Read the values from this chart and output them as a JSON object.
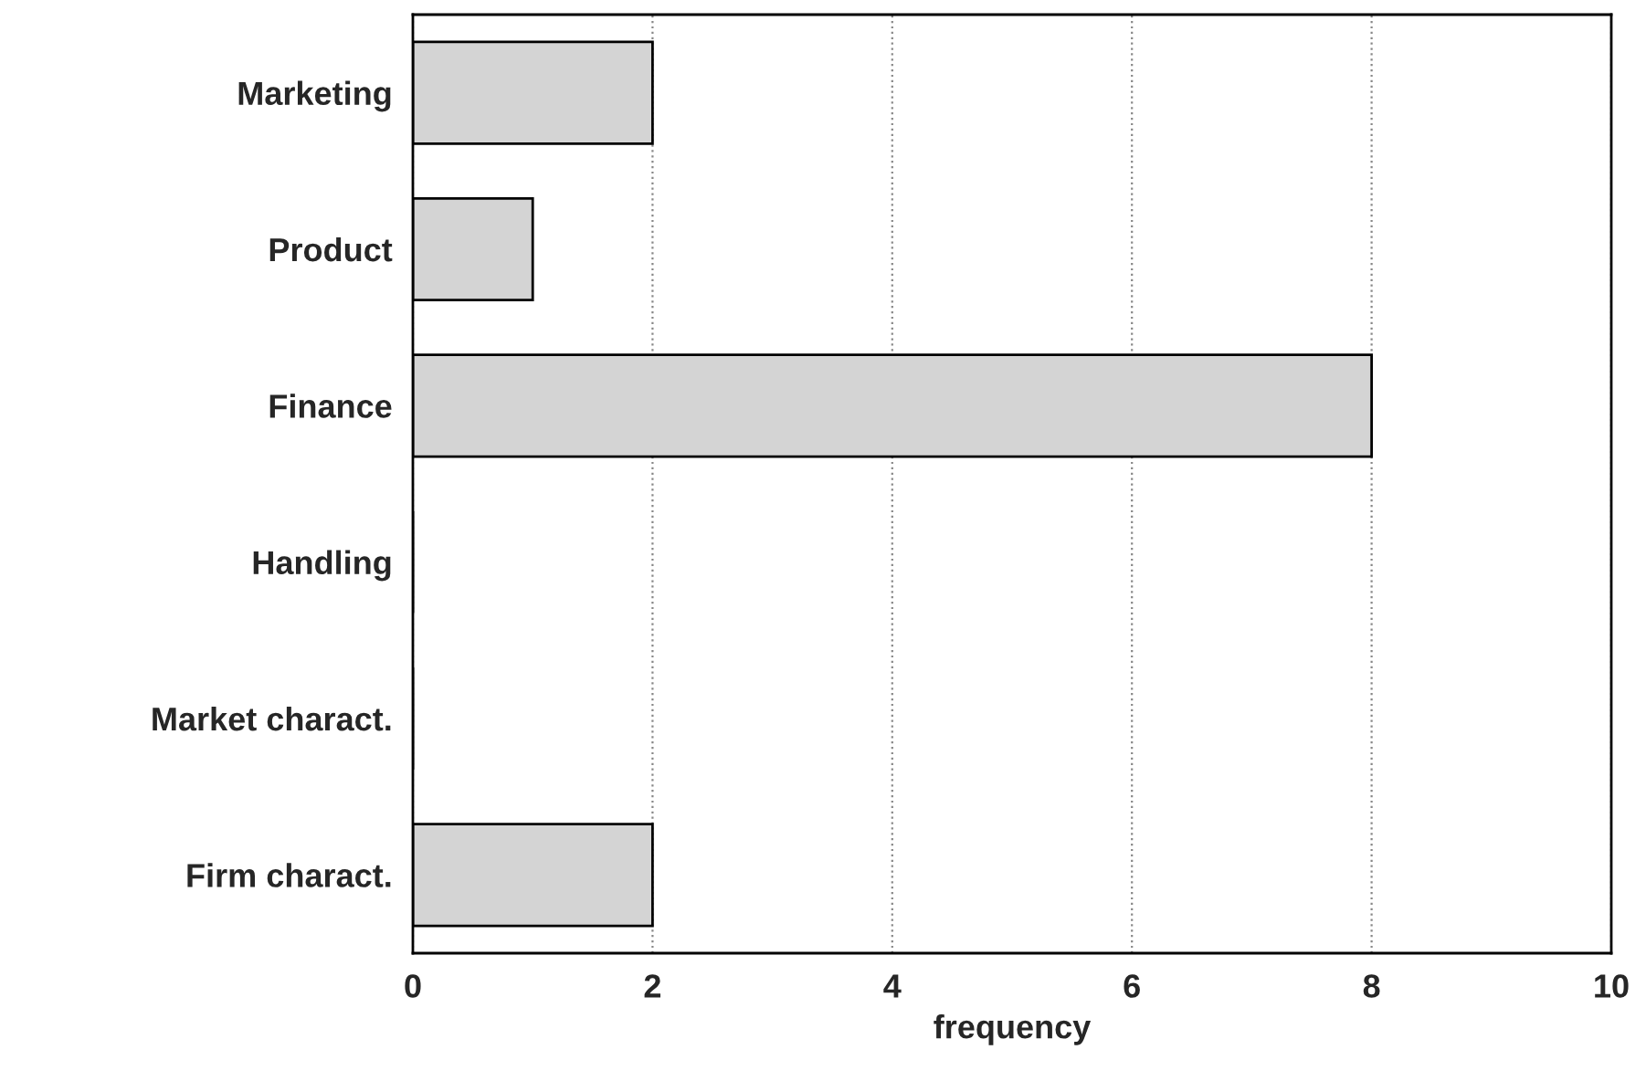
{
  "chart_data": {
    "type": "bar",
    "orientation": "horizontal",
    "xlabel": "frequency",
    "categories": [
      "Marketing",
      "Product",
      "Finance",
      "Handling",
      "Market charact.",
      "Firm charact."
    ],
    "values": [
      2,
      1,
      8,
      0,
      0,
      2
    ],
    "color": "#d4d4d4",
    "xlim": [
      0,
      10
    ],
    "xticks": [
      0,
      2,
      4,
      6,
      8,
      10
    ],
    "grid": "x"
  }
}
